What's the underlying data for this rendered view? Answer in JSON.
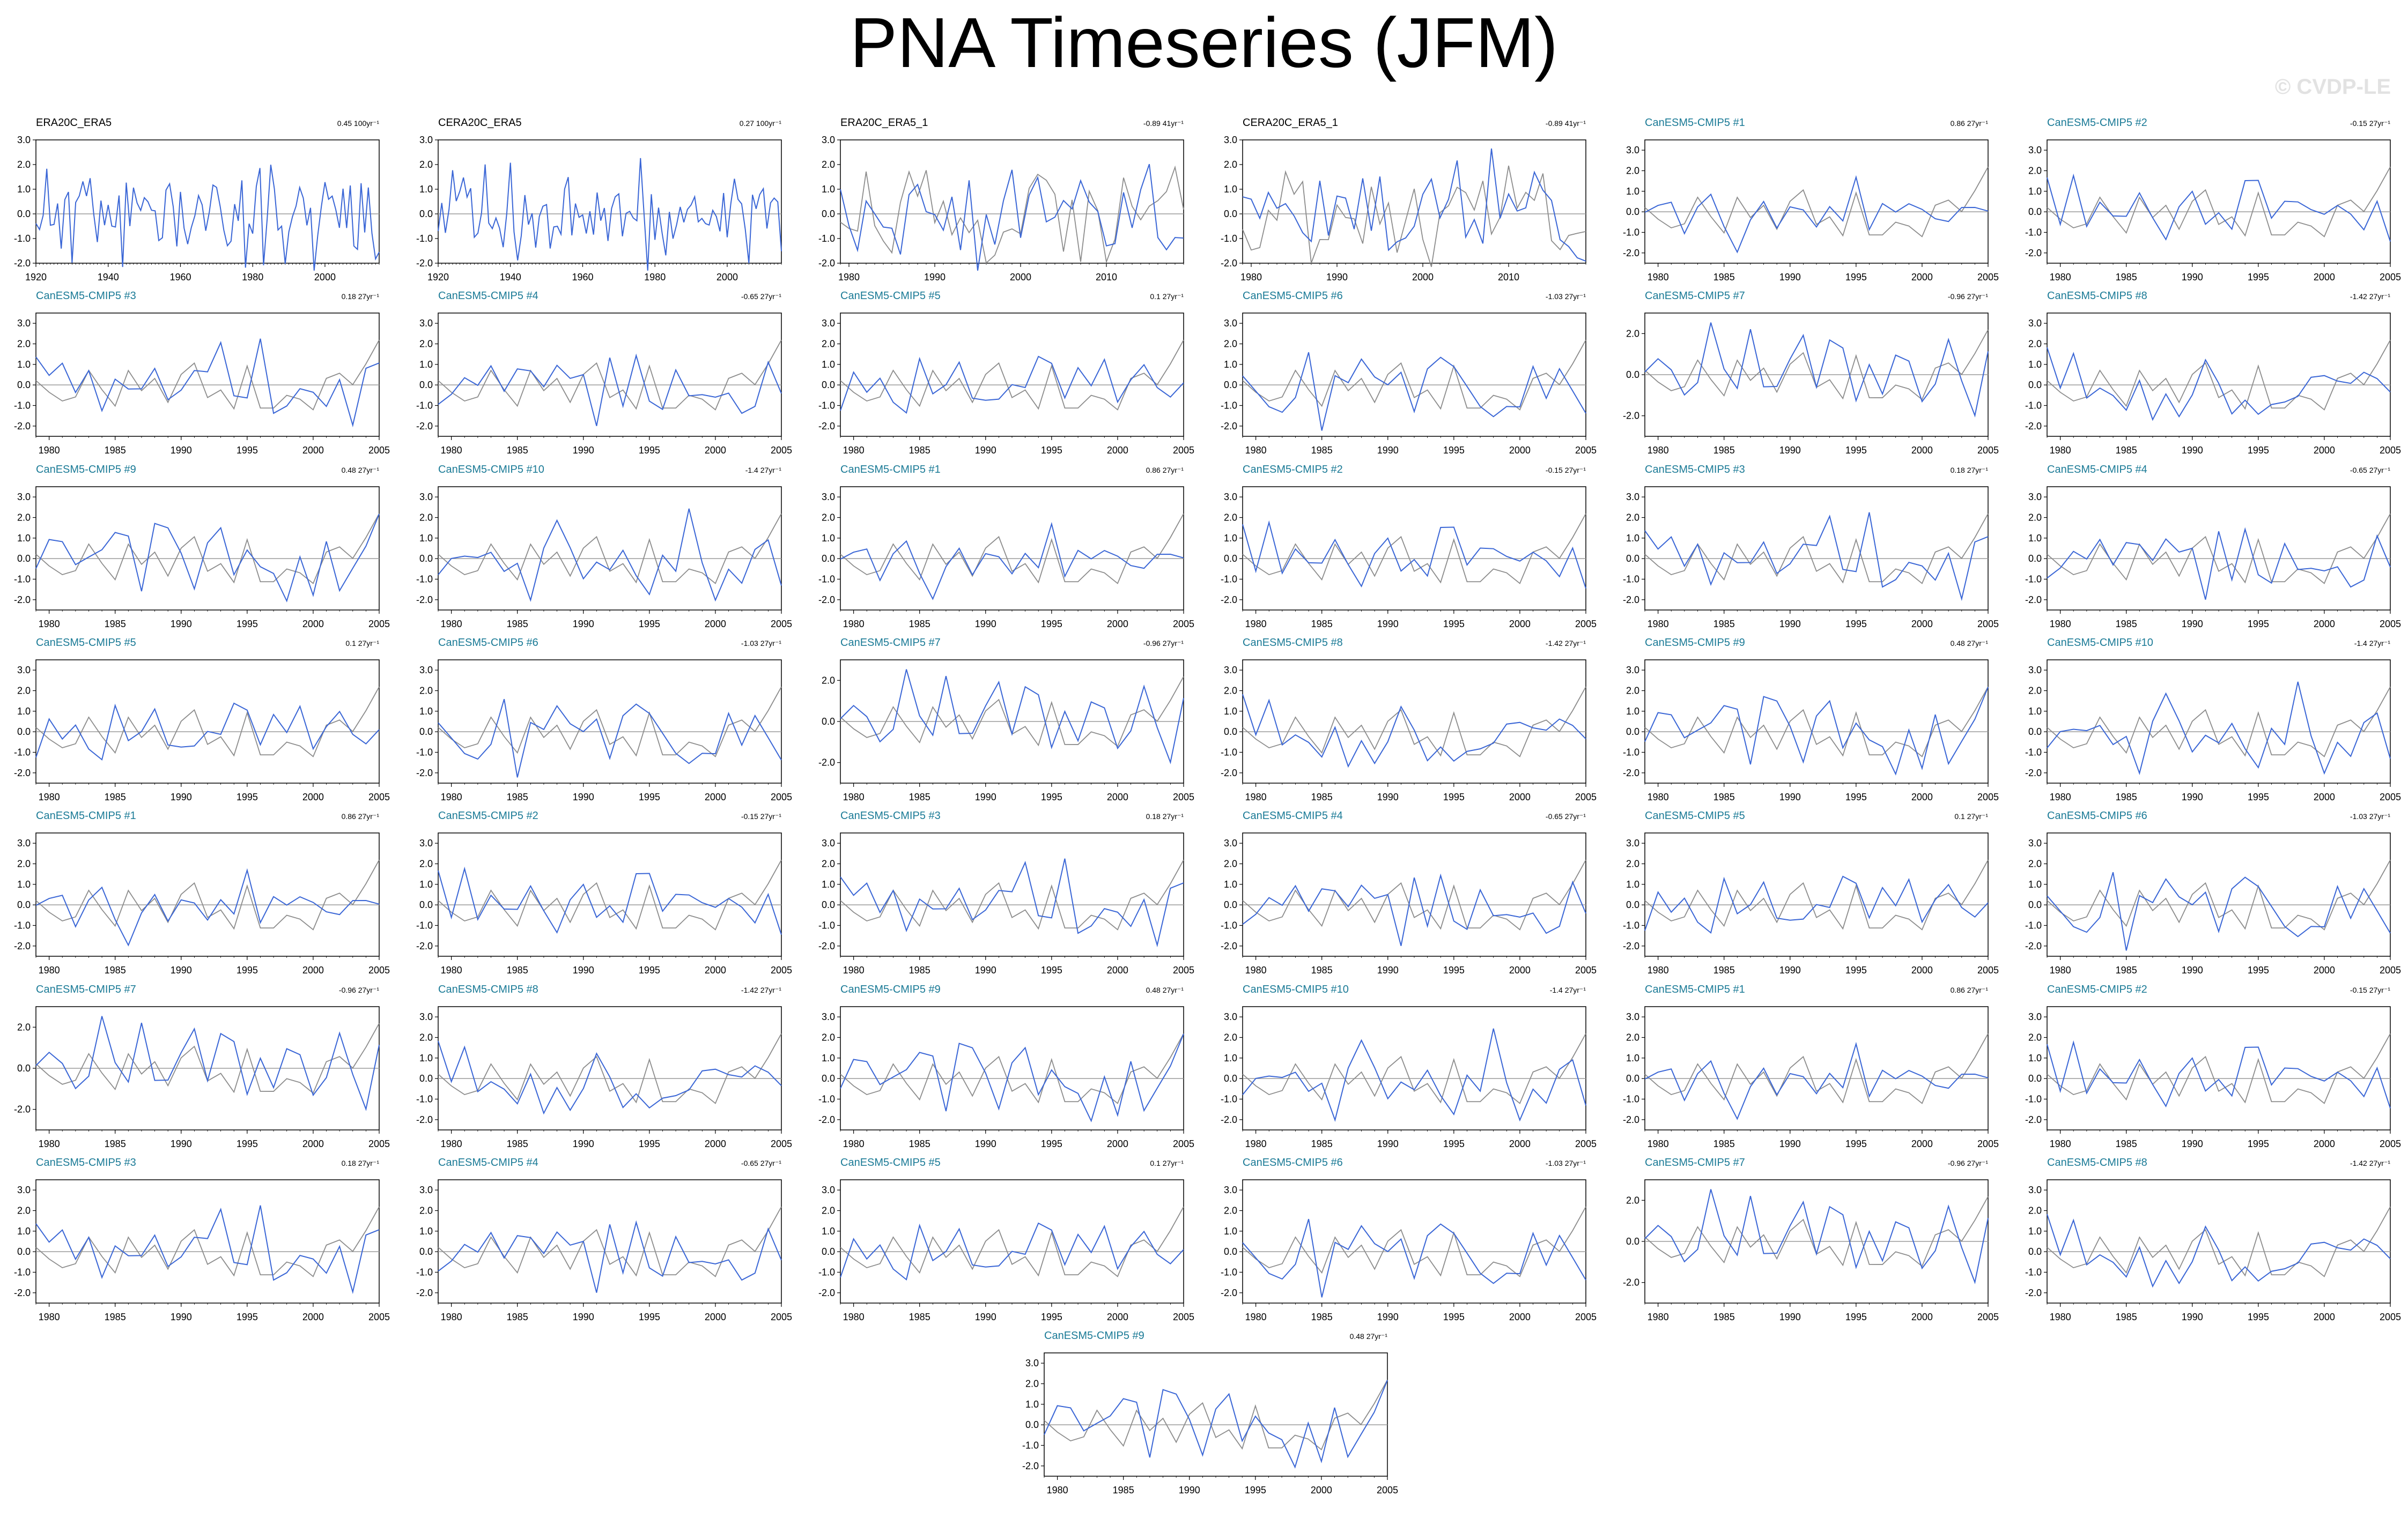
{
  "page": {
    "title": "PNA Timeseries (JFM)",
    "watermark": "© CVDP-LE"
  },
  "colors": {
    "model_line": "#3a66d6",
    "obs_line": "#8c8c8c",
    "zero_line": "#9a9a9a",
    "obs_title": "#000000",
    "model_title": "#1a7a96"
  },
  "chart_data": {
    "type": "line",
    "panels": [
      {
        "title": "ERA20C_ERA5",
        "trend": "0.45 100yr⁻¹",
        "kind": "obs",
        "xlim": [
          1920,
          2015
        ],
        "xticks": [
          1920,
          1940,
          1960,
          1980,
          2000
        ],
        "ylim": [
          -2.0,
          3.0
        ],
        "yticks": [
          -2.0,
          -1.0,
          0.0,
          1.0,
          2.0,
          3.0
        ],
        "seed": 11
      },
      {
        "title": "CERA20C_ERA5",
        "trend": "0.27 100yr⁻¹",
        "kind": "obs",
        "xlim": [
          1920,
          2015
        ],
        "xticks": [
          1920,
          1940,
          1960,
          1980,
          2000
        ],
        "ylim": [
          -2.0,
          3.0
        ],
        "yticks": [
          -2.0,
          -1.0,
          0.0,
          1.0,
          2.0,
          3.0
        ],
        "seed": 12
      },
      {
        "title": "ERA20C_ERA5_1",
        "trend": "-0.89 41yr⁻¹",
        "kind": "obs",
        "xlim": [
          1979,
          2019
        ],
        "xticks": [
          1980,
          1990,
          2000,
          2010
        ],
        "ylim": [
          -2.0,
          3.0
        ],
        "yticks": [
          -2.0,
          -1.0,
          0.0,
          1.0,
          2.0,
          3.0
        ],
        "seed": 13
      },
      {
        "title": "CERA20C_ERA5_1",
        "trend": "-0.89 41yr⁻¹",
        "kind": "obs",
        "xlim": [
          1979,
          2019
        ],
        "xticks": [
          1980,
          1990,
          2000,
          2010
        ],
        "ylim": [
          -2.0,
          3.0
        ],
        "yticks": [
          -2.0,
          -1.0,
          0.0,
          1.0,
          2.0,
          3.0
        ],
        "seed": 14
      },
      {
        "title": "CanESM5-CMIP5 #1",
        "trend": "0.86 27yr⁻¹",
        "kind": "model",
        "seed": 101
      },
      {
        "title": "CanESM5-CMIP5 #2",
        "trend": "-0.15 27yr⁻¹",
        "kind": "model",
        "seed": 102
      },
      {
        "title": "CanESM5-CMIP5 #3",
        "trend": "0.18 27yr⁻¹",
        "kind": "model",
        "seed": 103
      },
      {
        "title": "CanESM5-CMIP5 #4",
        "trend": "-0.65 27yr⁻¹",
        "kind": "model",
        "seed": 104
      },
      {
        "title": "CanESM5-CMIP5 #5",
        "trend": "0.1 27yr⁻¹",
        "kind": "model",
        "seed": 105
      },
      {
        "title": "CanESM5-CMIP5 #6",
        "trend": "-1.03 27yr⁻¹",
        "kind": "model",
        "seed": 106
      },
      {
        "title": "CanESM5-CMIP5 #7",
        "trend": "-0.96 27yr⁻¹",
        "kind": "model",
        "ylim": [
          -3.0,
          3.0
        ],
        "yticks": [
          -2.0,
          0.0,
          2.0
        ],
        "seed": 107
      },
      {
        "title": "CanESM5-CMIP5 #8",
        "trend": "-1.42 27yr⁻¹",
        "kind": "model",
        "seed": 108
      },
      {
        "title": "CanESM5-CMIP5 #9",
        "trend": "0.48 27yr⁻¹",
        "kind": "model",
        "seed": 109
      },
      {
        "title": "CanESM5-CMIP5 #10",
        "trend": "-1.4 27yr⁻¹",
        "kind": "model",
        "seed": 110
      },
      {
        "title": "CanESM5-CMIP5 #1",
        "trend": "0.86 27yr⁻¹",
        "kind": "model",
        "seed": 101
      },
      {
        "title": "CanESM5-CMIP5 #2",
        "trend": "-0.15 27yr⁻¹",
        "kind": "model",
        "seed": 102
      },
      {
        "title": "CanESM5-CMIP5 #3",
        "trend": "0.18 27yr⁻¹",
        "kind": "model",
        "seed": 103
      },
      {
        "title": "CanESM5-CMIP5 #4",
        "trend": "-0.65 27yr⁻¹",
        "kind": "model",
        "seed": 104
      },
      {
        "title": "CanESM5-CMIP5 #5",
        "trend": "0.1 27yr⁻¹",
        "kind": "model",
        "seed": 105
      },
      {
        "title": "CanESM5-CMIP5 #6",
        "trend": "-1.03 27yr⁻¹",
        "kind": "model",
        "seed": 106
      },
      {
        "title": "CanESM5-CMIP5 #7",
        "trend": "-0.96 27yr⁻¹",
        "kind": "model",
        "ylim": [
          -3.0,
          3.0
        ],
        "yticks": [
          -2.0,
          0.0,
          2.0
        ],
        "seed": 107
      },
      {
        "title": "CanESM5-CMIP5 #8",
        "trend": "-1.42 27yr⁻¹",
        "kind": "model",
        "seed": 108
      },
      {
        "title": "CanESM5-CMIP5 #9",
        "trend": "0.48 27yr⁻¹",
        "kind": "model",
        "seed": 109
      },
      {
        "title": "CanESM5-CMIP5 #10",
        "trend": "-1.4 27yr⁻¹",
        "kind": "model",
        "seed": 110
      },
      {
        "title": "CanESM5-CMIP5 #1",
        "trend": "0.86 27yr⁻¹",
        "kind": "model",
        "seed": 101
      },
      {
        "title": "CanESM5-CMIP5 #2",
        "trend": "-0.15 27yr⁻¹",
        "kind": "model",
        "seed": 102
      },
      {
        "title": "CanESM5-CMIP5 #3",
        "trend": "0.18 27yr⁻¹",
        "kind": "model",
        "seed": 103
      },
      {
        "title": "CanESM5-CMIP5 #4",
        "trend": "-0.65 27yr⁻¹",
        "kind": "model",
        "seed": 104
      },
      {
        "title": "CanESM5-CMIP5 #5",
        "trend": "0.1 27yr⁻¹",
        "kind": "model",
        "seed": 105
      },
      {
        "title": "CanESM5-CMIP5 #6",
        "trend": "-1.03 27yr⁻¹",
        "kind": "model",
        "seed": 106
      },
      {
        "title": "CanESM5-CMIP5 #7",
        "trend": "-0.96 27yr⁻¹",
        "kind": "model",
        "ylim": [
          -3.0,
          3.0
        ],
        "yticks": [
          -2.0,
          0.0,
          2.0
        ],
        "seed": 107
      },
      {
        "title": "CanESM5-CMIP5 #8",
        "trend": "-1.42 27yr⁻¹",
        "kind": "model",
        "seed": 108
      },
      {
        "title": "CanESM5-CMIP5 #9",
        "trend": "0.48 27yr⁻¹",
        "kind": "model",
        "seed": 109
      },
      {
        "title": "CanESM5-CMIP5 #10",
        "trend": "-1.4 27yr⁻¹",
        "kind": "model",
        "seed": 110
      },
      {
        "title": "CanESM5-CMIP5 #1",
        "trend": "0.86 27yr⁻¹",
        "kind": "model",
        "seed": 101
      },
      {
        "title": "CanESM5-CMIP5 #2",
        "trend": "-0.15 27yr⁻¹",
        "kind": "model",
        "seed": 102
      },
      {
        "title": "CanESM5-CMIP5 #3",
        "trend": "0.18 27yr⁻¹",
        "kind": "model",
        "seed": 103
      },
      {
        "title": "CanESM5-CMIP5 #4",
        "trend": "-0.65 27yr⁻¹",
        "kind": "model",
        "seed": 104
      },
      {
        "title": "CanESM5-CMIP5 #5",
        "trend": "0.1 27yr⁻¹",
        "kind": "model",
        "seed": 105
      },
      {
        "title": "CanESM5-CMIP5 #6",
        "trend": "-1.03 27yr⁻¹",
        "kind": "model",
        "seed": 106
      },
      {
        "title": "CanESM5-CMIP5 #7",
        "trend": "-0.96 27yr⁻¹",
        "kind": "model",
        "ylim": [
          -3.0,
          3.0
        ],
        "yticks": [
          -2.0,
          0.0,
          2.0
        ],
        "seed": 107
      },
      {
        "title": "CanESM5-CMIP5 #8",
        "trend": "-1.42 27yr⁻¹",
        "kind": "model",
        "seed": 108
      },
      {
        "title": "CanESM5-CMIP5 #9",
        "trend": "0.48 27yr⁻¹",
        "kind": "model",
        "seed": 109
      }
    ],
    "model_defaults": {
      "xlim": [
        1979,
        2005
      ],
      "xticks": [
        1980,
        1985,
        1990,
        1995,
        2000,
        2005
      ],
      "ylim": [
        -2.5,
        3.5
      ],
      "yticks": [
        -2.0,
        -1.0,
        0.0,
        1.0,
        2.0,
        3.0
      ]
    }
  }
}
